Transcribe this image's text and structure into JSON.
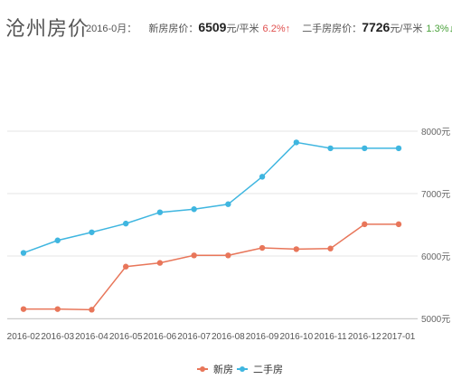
{
  "header": {
    "title": "沧州房价",
    "period_label": "2016-0月：",
    "new_label": "新房房价：",
    "new_price": "6509",
    "new_unit": "元/平米",
    "new_change": "6.2%↑",
    "second_label": "二手房房价：",
    "second_price": "7726",
    "second_unit": "元/平米",
    "second_change": "1.3%↓",
    "menu_icon": "menu-icon"
  },
  "colors": {
    "new": "#e8765a",
    "second": "#3fb6e0",
    "up": "#e0504f",
    "down": "#4aa23b",
    "grid": "#e6e6e6"
  },
  "chart_data": {
    "type": "line",
    "categories": [
      "2016-02",
      "2016-03",
      "2016-04",
      "2016-05",
      "2016-06",
      "2016-07",
      "2016-08",
      "2016-09",
      "2016-10",
      "2016-11",
      "2016-12",
      "2017-01"
    ],
    "series": [
      {
        "name": "新房",
        "values": [
          5150,
          5150,
          5140,
          5830,
          5890,
          6010,
          6010,
          6130,
          6110,
          6120,
          6509,
          6509
        ]
      },
      {
        "name": "二手房",
        "values": [
          6050,
          6250,
          6380,
          6520,
          6700,
          6750,
          6830,
          7270,
          7820,
          7726,
          7726,
          7726
        ]
      }
    ],
    "y_ticks": [
      "5000元",
      "6000元",
      "7000元",
      "8000元"
    ],
    "y_tick_values": [
      5000,
      6000,
      7000,
      8000
    ],
    "ylim": [
      5000,
      8000
    ],
    "grid": true,
    "legend_position": "bottom"
  }
}
